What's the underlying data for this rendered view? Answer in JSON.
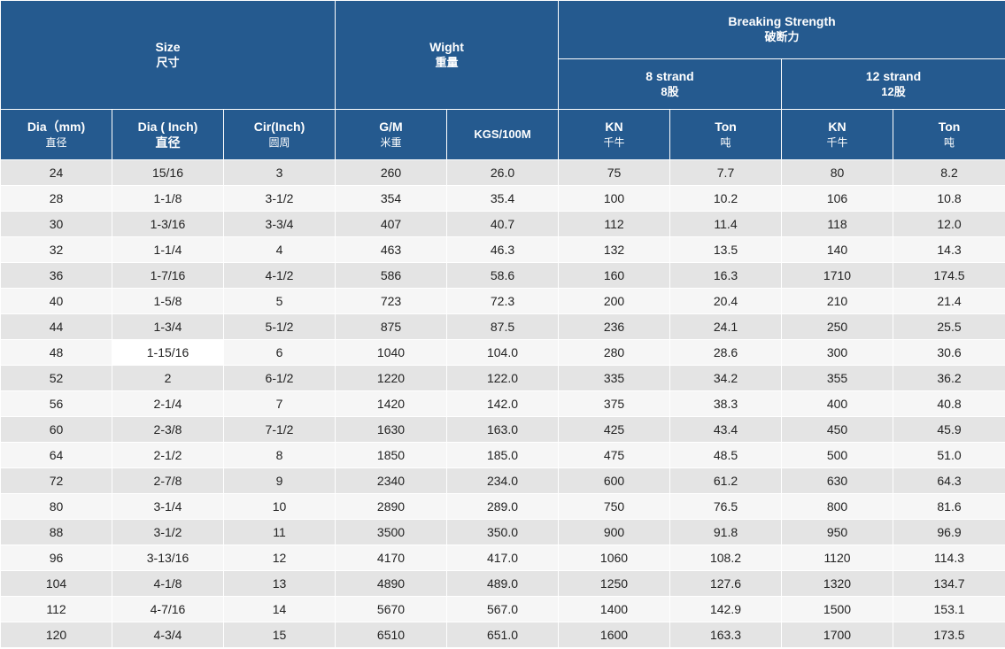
{
  "header": {
    "size": {
      "en": "Size",
      "cn": "尺寸"
    },
    "weight": {
      "en": "Wight",
      "cn": "重量"
    },
    "breaking": {
      "en": "Breaking Strength",
      "cn": "破断力"
    },
    "strand8": {
      "en": "8 strand",
      "cn": "8股"
    },
    "strand12": {
      "en": "12 strand",
      "cn": "12股"
    },
    "columns": [
      {
        "en": "Dia（mm)",
        "cn": "直径"
      },
      {
        "en": "Dia ( Inch)",
        "cn": "直径"
      },
      {
        "en": "Cir(Inch)",
        "cn": "圆周"
      },
      {
        "en": "G/M",
        "cn": "米重"
      },
      {
        "en": "KGS/100M",
        "cn": ""
      },
      {
        "en": "KN",
        "cn": "千牛"
      },
      {
        "en": "Ton",
        "cn": "吨"
      },
      {
        "en": "KN",
        "cn": "千牛"
      },
      {
        "en": "Ton",
        "cn": "吨"
      }
    ]
  },
  "rows": [
    [
      "24",
      "15/16",
      "3",
      "260",
      "26.0",
      "75",
      "7.7",
      "80",
      "8.2"
    ],
    [
      "28",
      "1-1/8",
      "3-1/2",
      "354",
      "35.4",
      "100",
      "10.2",
      "106",
      "10.8"
    ],
    [
      "30",
      "1-3/16",
      "3-3/4",
      "407",
      "40.7",
      "112",
      "11.4",
      "118",
      "12.0"
    ],
    [
      "32",
      "1-1/4",
      "4",
      "463",
      "46.3",
      "132",
      "13.5",
      "140",
      "14.3"
    ],
    [
      "36",
      "1-7/16",
      "4-1/2",
      "586",
      "58.6",
      "160",
      "16.3",
      "1710",
      "174.5"
    ],
    [
      "40",
      "1-5/8",
      "5",
      "723",
      "72.3",
      "200",
      "20.4",
      "210",
      "21.4"
    ],
    [
      "44",
      "1-3/4",
      "5-1/2",
      "875",
      "87.5",
      "236",
      "24.1",
      "250",
      "25.5"
    ],
    [
      "48",
      "1-15/16",
      "6",
      "1040",
      "104.0",
      "280",
      "28.6",
      "300",
      "30.6"
    ],
    [
      "52",
      "2",
      "6-1/2",
      "1220",
      "122.0",
      "335",
      "34.2",
      "355",
      "36.2"
    ],
    [
      "56",
      "2-1/4",
      "7",
      "1420",
      "142.0",
      "375",
      "38.3",
      "400",
      "40.8"
    ],
    [
      "60",
      "2-3/8",
      "7-1/2",
      "1630",
      "163.0",
      "425",
      "43.4",
      "450",
      "45.9"
    ],
    [
      "64",
      "2-1/2",
      "8",
      "1850",
      "185.0",
      "475",
      "48.5",
      "500",
      "51.0"
    ],
    [
      "72",
      "2-7/8",
      "9",
      "2340",
      "234.0",
      "600",
      "61.2",
      "630",
      "64.3"
    ],
    [
      "80",
      "3-1/4",
      "10",
      "2890",
      "289.0",
      "750",
      "76.5",
      "800",
      "81.6"
    ],
    [
      "88",
      "3-1/2",
      "11",
      "3500",
      "350.0",
      "900",
      "91.8",
      "950",
      "96.9"
    ],
    [
      "96",
      "3-13/16",
      "12",
      "4170",
      "417.0",
      "1060",
      "108.2",
      "1120",
      "114.3"
    ],
    [
      "104",
      "4-1/8",
      "13",
      "4890",
      "489.0",
      "1250",
      "127.6",
      "1320",
      "134.7"
    ],
    [
      "112",
      "4-7/16",
      "14",
      "5670",
      "567.0",
      "1400",
      "142.9",
      "1500",
      "153.1"
    ],
    [
      "120",
      "4-3/4",
      "15",
      "6510",
      "651.0",
      "1600",
      "163.3",
      "1700",
      "173.5"
    ]
  ],
  "highlight": {
    "row": 7,
    "col": 1
  },
  "colors": {
    "header_bg": "#255a8f",
    "header_text": "#ffffff",
    "row_odd": "#e4e4e4",
    "row_even": "#f6f6f6",
    "highlight": "#ffffff"
  }
}
